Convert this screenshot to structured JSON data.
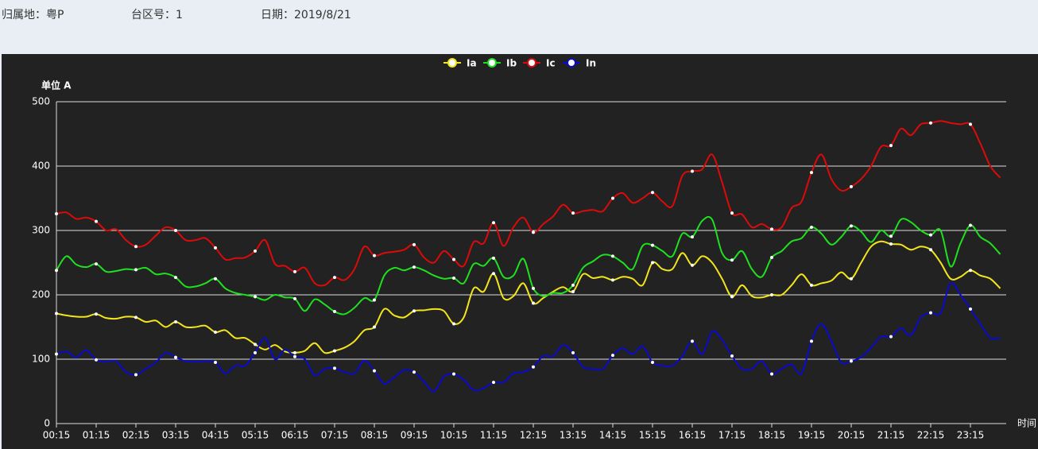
{
  "header": {
    "region": "归属地：粤P",
    "station": "台区号：1",
    "date": "日期：2019/8/21"
  },
  "chart_data": {
    "type": "line",
    "y_label": "单位 A",
    "x_label": "时间",
    "categories": [
      "00:15",
      null,
      null,
      null,
      "01:15",
      null,
      null,
      null,
      "02:15",
      null,
      null,
      null,
      "03:15",
      null,
      null,
      null,
      "04:15",
      null,
      null,
      null,
      "05:15",
      null,
      null,
      null,
      "06:15",
      null,
      null,
      null,
      "07:15",
      null,
      null,
      null,
      "08:15",
      null,
      null,
      null,
      "09:15",
      null,
      null,
      null,
      "10:15",
      null,
      null,
      null,
      "11:15",
      null,
      null,
      null,
      "12:15",
      null,
      null,
      null,
      "13:15",
      null,
      null,
      null,
      "14:15",
      null,
      null,
      null,
      "15:15",
      null,
      null,
      null,
      "16:15",
      null,
      null,
      null,
      "17:15",
      null,
      null,
      null,
      "18:15",
      null,
      null,
      null,
      "19:15",
      null,
      null,
      null,
      "20:15",
      null,
      null,
      null,
      "21:15",
      null,
      null,
      null,
      "22:15",
      null,
      null,
      null,
      "23:15",
      null,
      null,
      null
    ],
    "series": [
      {
        "name": "Ia",
        "color": "#f2e51c",
        "values": [
          171,
          168,
          166,
          166,
          170,
          164,
          163,
          166,
          165,
          158,
          160,
          150,
          158,
          150,
          150,
          152,
          142,
          145,
          133,
          133,
          123,
          115,
          122,
          112,
          110,
          113,
          125,
          110,
          113,
          118,
          128,
          145,
          150,
          178,
          168,
          165,
          175,
          176,
          178,
          175,
          155,
          165,
          210,
          205,
          233,
          195,
          198,
          218,
          187,
          195,
          205,
          212,
          205,
          232,
          226,
          228,
          223,
          228,
          225,
          215,
          250,
          240,
          240,
          265,
          246,
          260,
          250,
          225,
          197,
          215,
          198,
          196,
          200,
          200,
          215,
          232,
          215,
          218,
          222,
          235,
          225,
          250,
          275,
          283,
          279,
          278,
          270,
          275,
          270,
          250,
          225,
          228,
          238,
          230,
          225,
          210
        ]
      },
      {
        "name": "Ib",
        "color": "#1fe01f",
        "values": [
          238,
          260,
          247,
          243,
          248,
          236,
          237,
          240,
          239,
          242,
          232,
          233,
          227,
          213,
          213,
          218,
          225,
          210,
          203,
          200,
          197,
          192,
          200,
          196,
          194,
          175,
          193,
          185,
          174,
          170,
          180,
          195,
          192,
          230,
          242,
          238,
          243,
          238,
          230,
          225,
          226,
          218,
          248,
          245,
          257,
          228,
          230,
          256,
          210,
          198,
          203,
          203,
          215,
          242,
          252,
          262,
          260,
          250,
          240,
          276,
          277,
          268,
          260,
          295,
          290,
          315,
          317,
          265,
          254,
          268,
          240,
          228,
          258,
          268,
          283,
          288,
          305,
          295,
          278,
          290,
          307,
          298,
          282,
          300,
          291,
          317,
          313,
          300,
          293,
          300,
          244,
          280,
          308,
          290,
          280,
          263
        ]
      },
      {
        "name": "Ic",
        "color": "#dd0a0a",
        "values": [
          326,
          328,
          318,
          320,
          314,
          300,
          302,
          285,
          275,
          278,
          292,
          305,
          300,
          285,
          285,
          288,
          273,
          255,
          257,
          258,
          268,
          285,
          248,
          245,
          236,
          242,
          218,
          215,
          227,
          223,
          240,
          275,
          261,
          265,
          267,
          270,
          278,
          258,
          250,
          268,
          255,
          245,
          282,
          280,
          312,
          276,
          305,
          320,
          297,
          310,
          322,
          340,
          327,
          330,
          332,
          330,
          350,
          358,
          343,
          350,
          359,
          345,
          338,
          385,
          392,
          395,
          418,
          375,
          327,
          325,
          305,
          310,
          302,
          305,
          335,
          345,
          390,
          418,
          380,
          362,
          368,
          380,
          400,
          430,
          432,
          458,
          448,
          465,
          467,
          470,
          467,
          465,
          465,
          435,
          400,
          382
        ]
      },
      {
        "name": "In",
        "color": "#0a0acc",
        "values": [
          108,
          112,
          103,
          114,
          99,
          96,
          97,
          80,
          76,
          85,
          95,
          110,
          103,
          97,
          96,
          97,
          95,
          78,
          90,
          90,
          110,
          133,
          100,
          115,
          104,
          100,
          75,
          85,
          86,
          80,
          78,
          98,
          82,
          62,
          72,
          83,
          80,
          65,
          50,
          73,
          77,
          68,
          52,
          55,
          64,
          64,
          78,
          80,
          88,
          105,
          105,
          122,
          110,
          88,
          85,
          85,
          106,
          117,
          108,
          120,
          95,
          90,
          90,
          105,
          128,
          108,
          143,
          130,
          105,
          85,
          85,
          97,
          77,
          85,
          92,
          78,
          128,
          155,
          128,
          95,
          97,
          103,
          118,
          135,
          135,
          148,
          137,
          165,
          172,
          172,
          218,
          200,
          178,
          155,
          133,
          133
        ]
      }
    ],
    "ylim": [
      0,
      500
    ],
    "yticks": [
      0,
      100,
      200,
      300,
      400,
      500
    ],
    "grid": true,
    "legend": "top"
  }
}
